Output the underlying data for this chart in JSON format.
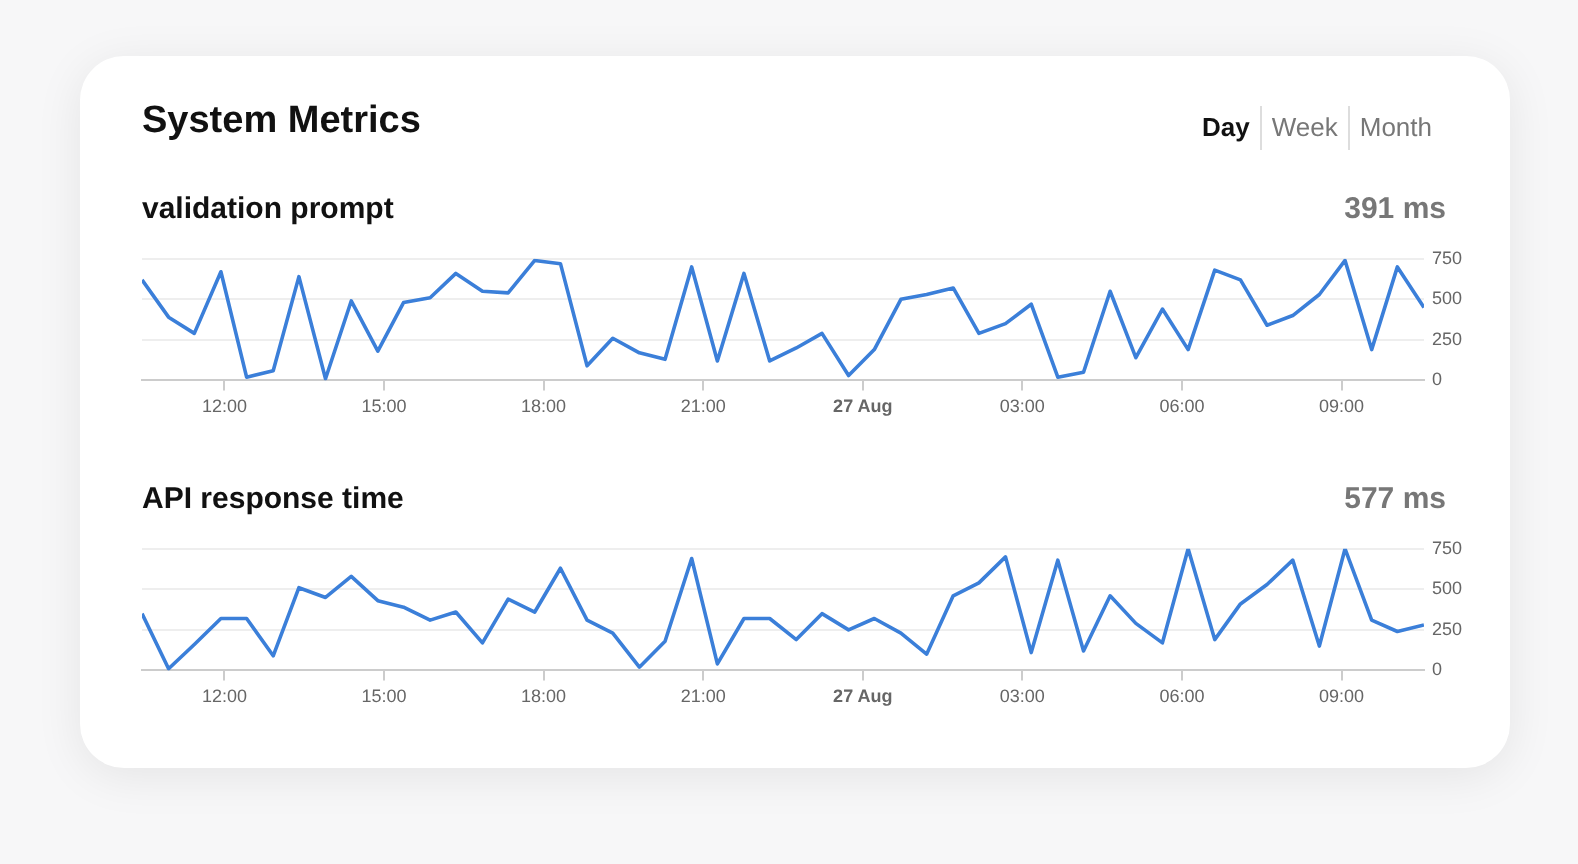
{
  "chart_data": [
    {
      "type": "other",
      "title": "System Metrics",
      "annotations": [
        "Day",
        "Week",
        "Month"
      ]
    },
    {
      "type": "line",
      "title": "validation prompt",
      "annotations": [
        "391 ms"
      ],
      "color": "#3b7fd9",
      "xlim": [
        "--08-26T10:27",
        "--08-27T10:33"
      ],
      "xticks": [
        {
          "value": "--08-26T12:00",
          "label": "12:00"
        },
        {
          "value": "--08-26T15:00",
          "label": "15:00"
        },
        {
          "value": "--08-26T18:00",
          "label": "18:00"
        },
        {
          "value": "--08-26T21:00",
          "label": "21:00"
        },
        {
          "value": "--08-27T00:00",
          "label": "27 Aug"
        },
        {
          "value": "--08-27T03:00",
          "label": "03:00"
        },
        {
          "value": "--08-27T06:00",
          "label": "06:00"
        },
        {
          "value": "--08-27T09:00",
          "label": "09:00"
        }
      ],
      "ylim": [
        0,
        750
      ],
      "yticks": [
        0,
        250,
        500,
        750
      ],
      "grid": "y",
      "marker": "none",
      "x": [
        "--08-26T10:27",
        "--08-26T10:57",
        "--08-26T11:26",
        "--08-26T11:56",
        "--08-26T12:25",
        "--08-26T12:55",
        "--08-26T13:24",
        "--08-26T13:54",
        "--08-26T14:23",
        "--08-26T14:53",
        "--08-26T15:22",
        "--08-26T15:52",
        "--08-26T16:21",
        "--08-26T16:51",
        "--08-26T17:20",
        "--08-26T17:50",
        "--08-26T18:19",
        "--08-26T18:49",
        "--08-26T19:18",
        "--08-26T19:48",
        "--08-26T20:17",
        "--08-26T20:47",
        "--08-26T21:16",
        "--08-26T21:46",
        "--08-26T22:15",
        "--08-26T22:45",
        "--08-26T23:14",
        "--08-26T23:44",
        "--08-27T00:13",
        "--08-27T00:43",
        "--08-27T01:12",
        "--08-27T01:42",
        "--08-27T02:11",
        "--08-27T02:41",
        "--08-27T03:10",
        "--08-27T03:40",
        "--08-27T04:09",
        "--08-27T04:39",
        "--08-27T05:08",
        "--08-27T05:38",
        "--08-27T06:07",
        "--08-27T06:37",
        "--08-27T07:06",
        "--08-27T07:36",
        "--08-27T08:05",
        "--08-27T08:35",
        "--08-27T09:04",
        "--08-27T09:34",
        "--08-27T10:03",
        "--08-27T10:33"
      ],
      "values": [
        620,
        390,
        290,
        670,
        20,
        60,
        640,
        10,
        490,
        180,
        480,
        510,
        660,
        550,
        540,
        740,
        720,
        90,
        260,
        170,
        130,
        700,
        120,
        660,
        120,
        200,
        290,
        30,
        190,
        500,
        530,
        570,
        290,
        350,
        470,
        20,
        50,
        550,
        140,
        440,
        190,
        680,
        620,
        340,
        400,
        530,
        740,
        190,
        700,
        450
      ]
    },
    {
      "type": "line",
      "title": "API response time",
      "annotations": [
        "577 ms"
      ],
      "color": "#3b7fd9",
      "xlim": [
        "--08-26T10:27",
        "--08-27T10:33"
      ],
      "xticks": [
        {
          "value": "--08-26T12:00",
          "label": "12:00"
        },
        {
          "value": "--08-26T15:00",
          "label": "15:00"
        },
        {
          "value": "--08-26T18:00",
          "label": "18:00"
        },
        {
          "value": "--08-26T21:00",
          "label": "21:00"
        },
        {
          "value": "--08-27T00:00",
          "label": "27 Aug"
        },
        {
          "value": "--08-27T03:00",
          "label": "03:00"
        },
        {
          "value": "--08-27T06:00",
          "label": "06:00"
        },
        {
          "value": "--08-27T09:00",
          "label": "09:00"
        }
      ],
      "ylim": [
        0,
        750
      ],
      "yticks": [
        0,
        250,
        500,
        750
      ],
      "grid": "y",
      "marker": "none",
      "x": [
        "--08-26T10:27",
        "--08-26T10:57",
        "--08-26T11:26",
        "--08-26T11:56",
        "--08-26T12:25",
        "--08-26T12:55",
        "--08-26T13:24",
        "--08-26T13:54",
        "--08-26T14:23",
        "--08-26T14:53",
        "--08-26T15:22",
        "--08-26T15:52",
        "--08-26T16:21",
        "--08-26T16:51",
        "--08-26T17:20",
        "--08-26T17:50",
        "--08-26T18:19",
        "--08-26T18:49",
        "--08-26T19:18",
        "--08-26T19:48",
        "--08-26T20:17",
        "--08-26T20:47",
        "--08-26T21:16",
        "--08-26T21:46",
        "--08-26T22:15",
        "--08-26T22:45",
        "--08-26T23:14",
        "--08-26T23:44",
        "--08-27T00:13",
        "--08-27T00:43",
        "--08-27T01:12",
        "--08-27T01:42",
        "--08-27T02:11",
        "--08-27T02:41",
        "--08-27T03:10",
        "--08-27T03:40",
        "--08-27T04:09",
        "--08-27T04:39",
        "--08-27T05:08",
        "--08-27T05:38",
        "--08-27T06:07",
        "--08-27T06:37",
        "--08-27T07:06",
        "--08-27T07:36",
        "--08-27T08:05",
        "--08-27T08:35",
        "--08-27T09:04",
        "--08-27T09:34",
        "--08-27T10:03",
        "--08-27T10:33"
      ],
      "values": [
        350,
        10,
        160,
        320,
        320,
        90,
        510,
        450,
        580,
        430,
        390,
        310,
        360,
        170,
        440,
        360,
        630,
        310,
        230,
        20,
        180,
        690,
        40,
        320,
        320,
        190,
        350,
        250,
        320,
        230,
        100,
        460,
        540,
        700,
        110,
        680,
        120,
        460,
        290,
        170,
        750,
        190,
        410,
        530,
        680,
        150,
        750,
        310,
        240,
        280
      ]
    }
  ]
}
